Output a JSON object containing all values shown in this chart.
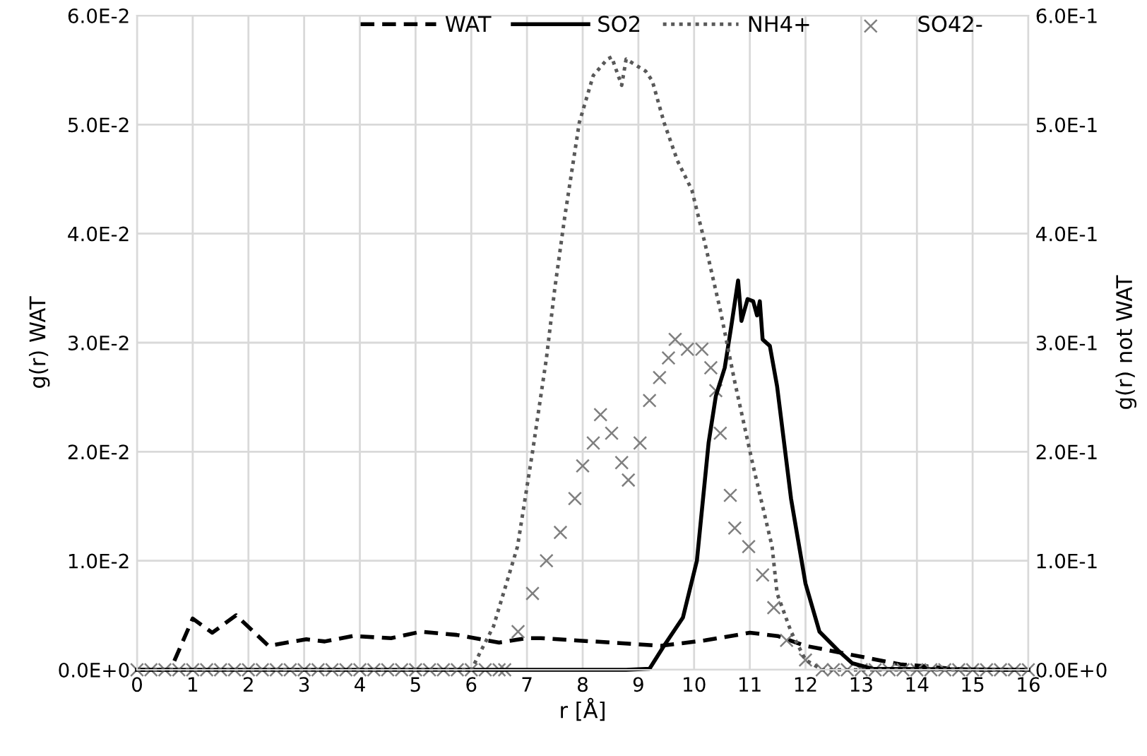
{
  "chart_data": {
    "type": "line",
    "xlabel": "r [Å]",
    "ylabel": "g(r) WAT",
    "y2label": "g(r) not WAT",
    "xlim": [
      0,
      16
    ],
    "xticks": [
      0,
      1,
      2,
      3,
      4,
      5,
      6,
      7,
      8,
      9,
      10,
      11,
      12,
      13,
      14,
      15,
      16
    ],
    "ylim": [
      0,
      0.06
    ],
    "yticks": [
      {
        "value": 0,
        "label": "0.0E+0"
      },
      {
        "value": 0.01,
        "label": "1.0E-2"
      },
      {
        "value": 0.02,
        "label": "2.0E-2"
      },
      {
        "value": 0.03,
        "label": "3.0E-2"
      },
      {
        "value": 0.04,
        "label": "4.0E-2"
      },
      {
        "value": 0.05,
        "label": "5.0E-2"
      },
      {
        "value": 0.06,
        "label": "6.0E-2"
      }
    ],
    "y2lim": [
      0,
      0.6
    ],
    "y2ticks": [
      {
        "value": 0,
        "label": "0.0E+0"
      },
      {
        "value": 0.1,
        "label": "1.0E-1"
      },
      {
        "value": 0.2,
        "label": "2.0E-1"
      },
      {
        "value": 0.3,
        "label": "3.0E-1"
      },
      {
        "value": 0.4,
        "label": "4.0E-1"
      },
      {
        "value": 0.5,
        "label": "5.0E-1"
      },
      {
        "value": 0.6,
        "label": "6.0E-1"
      }
    ],
    "grid": true,
    "legend": "top",
    "series": [
      {
        "name": "WAT",
        "line_style": "dashed",
        "color": "#000000",
        "x": [
          0,
          0.6,
          1.0,
          1.35,
          1.78,
          2.36,
          3.04,
          3.37,
          3.88,
          4.56,
          5.1,
          5.74,
          6.5,
          7.0,
          7.25,
          8.5,
          9.4,
          10.2,
          11.0,
          11.5,
          12.0,
          12.8,
          13.7,
          14.2,
          14.6,
          15.0,
          16
        ],
        "values": [
          0,
          0,
          0.0047,
          0.0034,
          0.005,
          0.0022,
          0.0028,
          0.0026,
          0.0031,
          0.0029,
          0.0035,
          0.0032,
          0.0025,
          0.0029,
          0.0029,
          0.0025,
          0.0022,
          0.0027,
          0.0034,
          0.0031,
          0.0022,
          0.0014,
          0.0005,
          0.0003,
          0.0001,
          0,
          0
        ]
      },
      {
        "name": "SO2",
        "line_style": "solid",
        "axis": "y2",
        "color": "#000000",
        "x": [
          0,
          8.78,
          9.2,
          9.46,
          9.8,
          10.05,
          10.26,
          10.39,
          10.55,
          10.67,
          10.79,
          10.85,
          10.96,
          11.06,
          11.13,
          11.18,
          11.23,
          11.36,
          11.49,
          11.74,
          12.0,
          12.25,
          12.58,
          12.84,
          13.2,
          16
        ],
        "values": [
          0,
          0,
          0.001,
          0.022,
          0.048,
          0.1,
          0.208,
          0.251,
          0.277,
          0.316,
          0.357,
          0.32,
          0.34,
          0.338,
          0.325,
          0.338,
          0.303,
          0.297,
          0.26,
          0.157,
          0.079,
          0.035,
          0.018,
          0.006,
          0.001,
          0
        ]
      },
      {
        "name": "NH4+",
        "type": "line",
        "line_style": "dotted",
        "axis": "y2",
        "color": "#595959",
        "x": [
          0,
          6.0,
          6.4,
          6.83,
          7.1,
          7.35,
          7.5,
          7.68,
          7.94,
          8.19,
          8.44,
          8.52,
          8.7,
          8.78,
          9.13,
          9.25,
          9.46,
          9.7,
          9.96,
          10.2,
          10.47,
          10.73,
          11.06,
          11.4,
          11.49,
          11.74,
          12.0,
          12.3,
          16
        ],
        "values": [
          0,
          0,
          0.04,
          0.113,
          0.2,
          0.286,
          0.35,
          0.416,
          0.502,
          0.545,
          0.56,
          0.562,
          0.536,
          0.56,
          0.549,
          0.54,
          0.502,
          0.467,
          0.44,
          0.39,
          0.33,
          0.264,
          0.187,
          0.113,
          0.07,
          0.035,
          0.009,
          0,
          0
        ]
      },
      {
        "name": "SO42-",
        "type": "scatter",
        "marker": "cross",
        "axis": "y2",
        "color": "#7f7f7f",
        "x": [
          0,
          0.25,
          0.5,
          0.75,
          1,
          1.25,
          1.5,
          1.75,
          2,
          2.25,
          2.5,
          2.75,
          3,
          3.25,
          3.5,
          3.75,
          4,
          4.25,
          4.5,
          4.75,
          5,
          5.25,
          5.5,
          5.75,
          6,
          6.25,
          6.5,
          6.6,
          6.84,
          7.1,
          7.35,
          7.6,
          7.86,
          8.0,
          8.19,
          8.32,
          8.52,
          8.7,
          8.82,
          9.03,
          9.2,
          9.38,
          9.54,
          9.66,
          9.88,
          10.14,
          10.3,
          10.39,
          10.47,
          10.65,
          10.73,
          10.98,
          11.23,
          11.43,
          11.66,
          12.0,
          12.3,
          12.5,
          12.75,
          13,
          13.25,
          13.5,
          13.75,
          14,
          14.25,
          14.5,
          14.75,
          15,
          15.25,
          15.5,
          15.75,
          16
        ],
        "values": [
          0,
          0,
          0,
          0,
          0,
          0,
          0,
          0,
          0,
          0,
          0,
          0,
          0,
          0,
          0,
          0,
          0,
          0,
          0,
          0,
          0,
          0,
          0,
          0,
          0,
          0,
          0,
          0,
          0.035,
          0.07,
          0.1,
          0.126,
          0.157,
          0.187,
          0.208,
          0.234,
          0.217,
          0.19,
          0.174,
          0.208,
          0.247,
          0.268,
          0.286,
          0.303,
          0.294,
          0.294,
          0.277,
          0.256,
          0.217,
          0.16,
          0.13,
          0.113,
          0.087,
          0.057,
          0.027,
          0.009,
          0,
          0,
          0,
          0,
          0,
          0,
          0,
          0,
          0,
          0,
          0,
          0,
          0,
          0,
          0,
          0
        ]
      }
    ]
  }
}
